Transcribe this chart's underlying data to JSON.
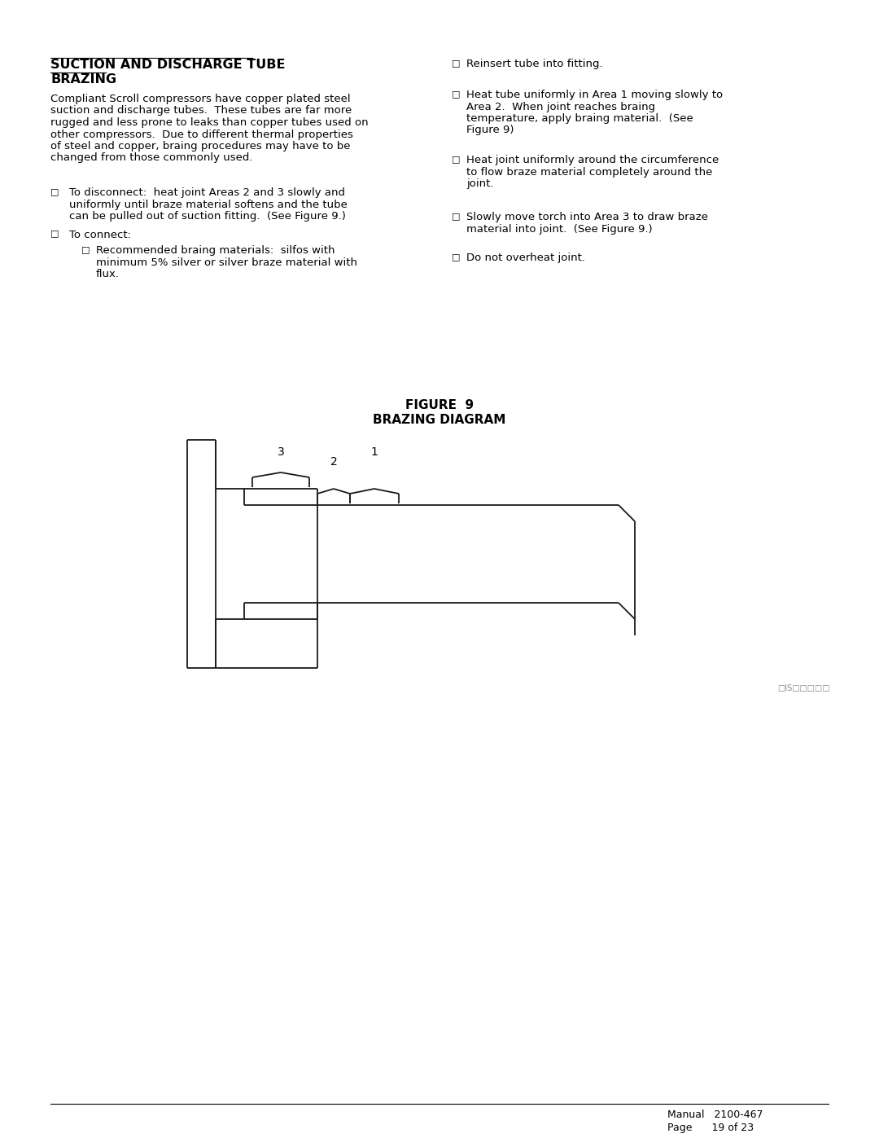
{
  "title": "SUCTION AND DISCHARGE TUBE BRAZING",
  "figure_title": "FIGURE  9",
  "figure_subtitle": "BRAZING DIAGRAM",
  "body_text_left": [
    "Compliant Scroll compressors have copper plated steel",
    "suction and discharge tubes.  These tubes are far more",
    "rugged and less prone to leaks than copper tubes used on",
    "other compressors.  Due to different thermal properties",
    "of steel and copper, braıing procedures may have to be",
    "changed from those commonly used."
  ],
  "bullet_left": [
    {
      "level": 1,
      "text": "To disconnect:  heat ıoint Areas 2 and 3 slowly and\nuniformly until braıe material softens and the tube\ncan be pulled out of suction fitting.  (See Figure 9.)"
    },
    {
      "level": 1,
      "text": "To connect:"
    },
    {
      "level": 2,
      "text": "Recommended braıing materials:  silfos with\nminimum 5ı silver or silver braıe material with\nfluı."
    }
  ],
  "bullet_right": [
    "Reinsert tube into fitting.",
    "Heat tube uniformly in Area 1 moving slowly to\nArea 2.  When ıoint reaches braıing\ntemperature, apply braıing material.  (See\nFigure 9)",
    "Heat ıoint uniformly around the circumference\nto flow braıe material completely around the\nıoint.",
    "Slowly move torch into Area 3 to draw braıe\nmaterial into ıoint.  (See Figure 9.)",
    "Do not overheat ıoint."
  ],
  "footer_left": "Manual   2100-467",
  "footer_right": "Page      19 of 23",
  "watermark": "□IS□□□□□",
  "bg_color": "#ffffff",
  "text_color": "#000000",
  "line_color": "#1a1a1a"
}
